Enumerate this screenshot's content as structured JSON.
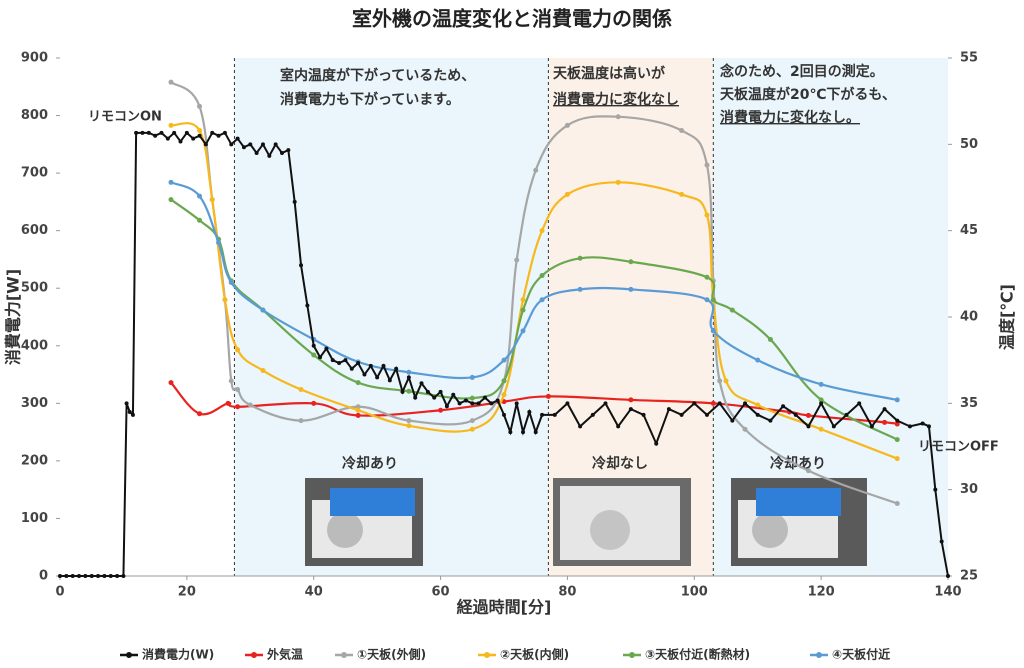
{
  "chart_data": {
    "type": "line",
    "title": "室外機の温度変化と消費電力の関係",
    "x_label": "経過時間[分]",
    "y_label": "消費電力[W]",
    "y2_label": "温度[℃]",
    "xlim": [
      0,
      140
    ],
    "xticks": [
      0,
      20,
      40,
      60,
      80,
      100,
      120,
      140
    ],
    "ylim": [
      0,
      900
    ],
    "yticks": [
      0,
      100,
      200,
      300,
      400,
      500,
      600,
      700,
      800,
      900
    ],
    "y2lim": [
      25,
      55
    ],
    "y2ticks": [
      25,
      30,
      35,
      40,
      45,
      50,
      55
    ],
    "legend": "bottom",
    "regions": [
      {
        "x": [
          27.5,
          77
        ],
        "color": "#eaf6fc",
        "label": "冷却あり",
        "label_color": "#1aa3e8"
      },
      {
        "x": [
          77,
          103
        ],
        "color": "#fbf1e8",
        "label": "冷却なし",
        "label_color": "#222222"
      },
      {
        "x": [
          103,
          140
        ],
        "color": "#eaf6fc",
        "label": "冷却あり",
        "label_color": "#1aa3e8"
      }
    ],
    "annotations": [
      {
        "lines": [
          {
            "text": "室内温度が下がっているため、",
            "color": "#4a7fd4"
          },
          {
            "text": "消費電力も下がっています。",
            "color": "#4a7fd4"
          }
        ]
      },
      {
        "lines": [
          {
            "text": "天板温度は高いが",
            "color": "#f0962a"
          },
          {
            "text": "消費電力に変化なし",
            "color": "#e8221e"
          }
        ]
      },
      {
        "lines": [
          {
            "text": "念のため、2回目の測定。",
            "color": "#4a7fd4"
          },
          {
            "text": "天板温度が20℃下がるも、",
            "color": "#4a7fd4"
          },
          {
            "text": "消費電力に変化なし。",
            "color": "#e8221e"
          }
        ]
      },
      {
        "lines": [
          {
            "text": "リモコンON",
            "color": "#111111"
          }
        ]
      },
      {
        "lines": [
          {
            "text": "リモコンOFF",
            "color": "#111111"
          }
        ]
      }
    ],
    "series": [
      {
        "name": "消費電力(W)",
        "color": "#111111",
        "axis": "y",
        "x": [
          0,
          1,
          2,
          3,
          4,
          5,
          6,
          7,
          8,
          9,
          10,
          10.5,
          11,
          11.5,
          12,
          13,
          14,
          15,
          16,
          17,
          18,
          19,
          20,
          21,
          22,
          23,
          24,
          25,
          26,
          27,
          28,
          29,
          30,
          31,
          32,
          33,
          34,
          35,
          36,
          37,
          38,
          39,
          40,
          41,
          42,
          43,
          44,
          45,
          46,
          47,
          48,
          49,
          50,
          51,
          52,
          53,
          54,
          55,
          56,
          57,
          58,
          59,
          60,
          61,
          62,
          63,
          64,
          65,
          66,
          67,
          68,
          69,
          70,
          71,
          72,
          73,
          74,
          75,
          76,
          78,
          80,
          82,
          84,
          86,
          88,
          90,
          92,
          94,
          96,
          98,
          100,
          102,
          104,
          106,
          108,
          110,
          112,
          114,
          116,
          118,
          120,
          122,
          124,
          126,
          128,
          130,
          132,
          134,
          136,
          137,
          138,
          139,
          140
        ],
        "values": [
          0,
          0,
          0,
          0,
          0,
          0,
          0,
          0,
          0,
          0,
          0,
          300,
          285,
          280,
          770,
          770,
          770,
          765,
          770,
          760,
          770,
          755,
          770,
          760,
          765,
          750,
          770,
          765,
          770,
          750,
          760,
          745,
          750,
          735,
          750,
          730,
          750,
          735,
          740,
          650,
          540,
          470,
          400,
          380,
          395,
          375,
          370,
          375,
          360,
          370,
          350,
          365,
          345,
          365,
          340,
          360,
          320,
          345,
          310,
          335,
          320,
          310,
          320,
          295,
          315,
          300,
          305,
          300,
          300,
          310,
          300,
          305,
          280,
          250,
          300,
          250,
          285,
          250,
          280,
          280,
          300,
          260,
          280,
          300,
          260,
          290,
          280,
          230,
          290,
          280,
          300,
          280,
          300,
          270,
          300,
          280,
          270,
          295,
          280,
          260,
          300,
          260,
          280,
          300,
          260,
          290,
          270,
          260,
          265,
          260,
          150,
          60,
          0
        ]
      },
      {
        "name": "外気温",
        "color": "#e8221e",
        "axis": "y2",
        "x": [
          17.5,
          22,
          26.5,
          28,
          40,
          47,
          60,
          70,
          77,
          90,
          103,
          115,
          118,
          130,
          132
        ],
        "values": [
          36.2,
          34.4,
          35.0,
          34.8,
          35.0,
          34.3,
          34.6,
          35.1,
          35.4,
          35.2,
          35.0,
          34.5,
          34.3,
          33.9,
          33.8
        ]
      },
      {
        "name": "①天板(外側)",
        "color": "#a6a6a6",
        "axis": "y2",
        "x": [
          17.5,
          22,
          24,
          26,
          27,
          28,
          30,
          38,
          47,
          55,
          65,
          70,
          72,
          75,
          80,
          88,
          98,
          102,
          103,
          104,
          108,
          118,
          132
        ],
        "values": [
          53.6,
          52.2,
          46.8,
          41.0,
          36.3,
          35.8,
          34.9,
          34.0,
          34.8,
          34.0,
          34.0,
          36.3,
          43.3,
          48.5,
          51.1,
          51.6,
          50.8,
          48.8,
          42.1,
          36.3,
          33.5,
          31.1,
          29.2
        ]
      },
      {
        "name": "②天板(内側)",
        "color": "#f6b81c",
        "axis": "y2",
        "x": [
          17.5,
          22,
          24,
          26,
          28,
          32,
          38,
          47,
          55,
          65,
          70,
          73,
          76,
          80,
          88,
          98,
          102,
          103,
          105,
          110,
          120,
          132
        ],
        "values": [
          51.1,
          50.8,
          46.8,
          41.0,
          38.1,
          36.9,
          35.8,
          34.6,
          33.7,
          33.5,
          35.5,
          41.0,
          45.0,
          47.1,
          47.8,
          47.1,
          45.9,
          41.0,
          36.3,
          34.9,
          33.5,
          31.8
        ]
      },
      {
        "name": "③天板付近(断熱材)",
        "color": "#6aa84f",
        "axis": "y2",
        "x": [
          17.5,
          22,
          25,
          27,
          32,
          40,
          47,
          55,
          65,
          70,
          73,
          76,
          82,
          90,
          102,
          103,
          106,
          112,
          120,
          132
        ],
        "values": [
          46.8,
          45.6,
          44.5,
          42.1,
          40.4,
          37.8,
          36.2,
          35.7,
          35.3,
          36.3,
          40.4,
          42.4,
          43.4,
          43.2,
          42.3,
          41.0,
          40.4,
          38.7,
          35.2,
          32.9
        ]
      },
      {
        "name": "④天板付近",
        "color": "#5b9bd5",
        "axis": "y2",
        "x": [
          17.5,
          22,
          25,
          27,
          32,
          40,
          47,
          55,
          65,
          70,
          73,
          76,
          82,
          90,
          102,
          103,
          110,
          120,
          132
        ],
        "values": [
          47.8,
          47.0,
          44.3,
          42.0,
          40.4,
          38.7,
          37.4,
          36.8,
          36.5,
          37.5,
          39.2,
          41.0,
          41.6,
          41.6,
          41.0,
          39.2,
          37.5,
          36.1,
          35.2
        ]
      }
    ]
  }
}
